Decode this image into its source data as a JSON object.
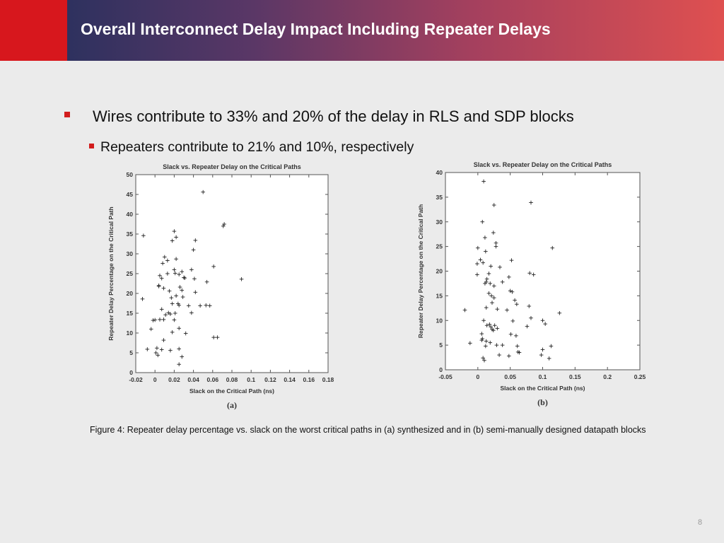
{
  "title": "Overall Interconnect Delay Impact Including Repeater Delays",
  "bullets": {
    "main": "Wires contribute to 33% and 20% of the delay in RLS and SDP blocks",
    "sub": "Repeaters contribute to 21% and 10%, respectively"
  },
  "colors": {
    "bullet": "#d21d1d",
    "header_left": "#1e2f5c",
    "header_right": "#df5050",
    "accent_block": "#d7171d"
  },
  "caption": "Figure 4: Repeater delay percentage vs. slack on the worst critical paths in (a) synthesized and in (b) semi-manually designed datapath blocks",
  "page_number": "8",
  "chart_data": [
    {
      "type": "scatter",
      "panel_label": "(a)",
      "title": "Slack vs. Repeater Delay on the Critical Paths",
      "xlabel": "Slack on the Critical Path (ns)",
      "ylabel": "Repeater Delay Percentage on the Critical Path",
      "xlim": [
        -0.02,
        0.18
      ],
      "ylim": [
        0,
        50
      ],
      "xticks": [
        "-0.02",
        "0",
        "0.02",
        "0.04",
        "0.06",
        "0.08",
        "0.1",
        "0.12",
        "0.14",
        "0.16",
        "0.18"
      ],
      "yticks": [
        "0",
        "5",
        "10",
        "15",
        "20",
        "25",
        "30",
        "35",
        "40",
        "45",
        "50"
      ],
      "marker": "+",
      "grid": false,
      "series": [
        {
          "x": [
            0.05,
            0.072,
            0.071,
            -0.012,
            0.022,
            0.02,
            0.018,
            0.042,
            0.04,
            0.01,
            0.013,
            0.008,
            0.09,
            0.022,
            0.038,
            0.021,
            0.061,
            0.025,
            0.013,
            0.005,
            0.02,
            0.028,
            0.007,
            0.054,
            0.041,
            0.031,
            0.03,
            0.004,
            0.004,
            0.009,
            0.026,
            0.015,
            0.028,
            0.022,
            0.029,
            0.017,
            0.018,
            0.024,
            0.042,
            0.025,
            0.035,
            0.047,
            0.014,
            0.053,
            0.057,
            0.007,
            0.021,
            0.011,
            0.016,
            0.009,
            0.02,
            0.005,
            0.038,
            -0.002,
            0.018,
            0.061,
            0.065,
            0.009,
            0.032,
            0.025,
            0.002,
            0.007,
            0.016,
            0.025,
            0.003,
            0.028,
            0.025,
            0.0,
            -0.008,
            -0.013,
            -0.004,
            0.001
          ],
          "y": [
            45.6,
            37.5,
            37.0,
            34.6,
            34.2,
            35.7,
            33.3,
            33.4,
            31.0,
            29.2,
            28.3,
            27.6,
            23.6,
            28.7,
            26.0,
            25.1,
            26.8,
            24.8,
            25.0,
            24.5,
            26.0,
            25.5,
            23.8,
            22.9,
            23.7,
            23.9,
            24.0,
            22.0,
            21.8,
            21.3,
            21.6,
            20.6,
            20.8,
            19.4,
            19.1,
            18.9,
            17.4,
            17.4,
            20.3,
            17.0,
            16.9,
            16.9,
            15.1,
            17.0,
            16.9,
            16.0,
            15.0,
            14.6,
            14.8,
            13.4,
            13.3,
            13.4,
            15.1,
            13.2,
            10.2,
            8.9,
            8.9,
            8.2,
            9.9,
            11.2,
            6.2,
            5.8,
            5.6,
            6.0,
            4.4,
            4.0,
            2.1,
            13.3,
            5.9,
            18.6,
            11.0,
            5.0
          ]
        }
      ]
    },
    {
      "type": "scatter",
      "panel_label": "(b)",
      "title": "Slack vs. Repeater Delay on the Critical Paths",
      "xlabel": "Slack on the Critical Path (ns)",
      "ylabel": "Repeater Delay Percentage on the Critical Path",
      "xlim": [
        -0.05,
        0.25
      ],
      "ylim": [
        0,
        40
      ],
      "xticks": [
        "-0.05",
        "0",
        "0.05",
        "0.1",
        "0.15",
        "0.2",
        "0.25"
      ],
      "yticks": [
        "0",
        "5",
        "10",
        "15",
        "20",
        "25",
        "30",
        "35",
        "40"
      ],
      "marker": "+",
      "grid": false,
      "series": [
        {
          "x": [
            0.009,
            0.025,
            0.082,
            0.007,
            0.024,
            0.011,
            0.028,
            0.028,
            0.0,
            0.012,
            0.08,
            0.115,
            0.052,
            0.004,
            0.008,
            -0.001,
            0.02,
            0.034,
            0.086,
            0.017,
            -0.001,
            0.048,
            0.014,
            0.013,
            0.038,
            0.011,
            0.019,
            0.025,
            0.05,
            0.053,
            0.017,
            0.021,
            0.025,
            0.057,
            0.022,
            0.06,
            0.079,
            0.013,
            -0.02,
            0.045,
            0.03,
            0.126,
            0.009,
            0.018,
            0.026,
            0.082,
            0.054,
            0.1,
            0.104,
            0.014,
            0.02,
            0.022,
            0.03,
            0.024,
            0.006,
            0.051,
            0.059,
            0.076,
            0.006,
            0.013,
            0.019,
            0.038,
            0.061,
            0.064,
            0.048,
            -0.012,
            0.029,
            0.012,
            0.008,
            0.113,
            0.1,
            0.033,
            0.062,
            0.01,
            0.098,
            0.007,
            0.11
          ],
          "y": [
            38.2,
            33.4,
            33.9,
            30.0,
            27.8,
            26.8,
            25.7,
            25.0,
            24.7,
            24.0,
            19.6,
            24.7,
            22.2,
            22.3,
            21.7,
            21.5,
            21.0,
            20.8,
            19.3,
            19.5,
            19.3,
            18.8,
            18.4,
            17.8,
            17.8,
            17.5,
            17.5,
            17.0,
            16.0,
            15.8,
            15.5,
            15.0,
            14.6,
            14.1,
            13.6,
            13.3,
            12.9,
            12.6,
            12.1,
            12.1,
            12.3,
            11.5,
            10.0,
            9.2,
            9.0,
            10.5,
            9.9,
            10.0,
            9.3,
            9.0,
            8.7,
            8.2,
            8.4,
            8.0,
            7.3,
            7.2,
            6.9,
            8.8,
            6.0,
            5.8,
            5.5,
            5.0,
            4.8,
            3.5,
            2.8,
            5.4,
            5.0,
            4.8,
            2.4,
            4.8,
            4.1,
            3.0,
            3.6,
            1.9,
            3.0,
            6.3,
            2.3
          ]
        }
      ]
    }
  ]
}
